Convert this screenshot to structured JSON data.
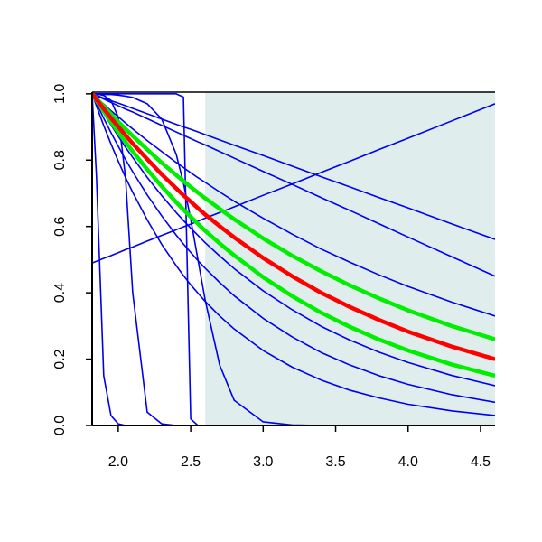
{
  "chart_data": {
    "type": "line",
    "xlim": [
      1.82,
      4.6
    ],
    "ylim": [
      0,
      1.005
    ],
    "xticks": [
      {
        "value": 2,
        "label": "2.0"
      },
      {
        "value": 2.5,
        "label": "2.5"
      },
      {
        "value": 3,
        "label": "3.0"
      },
      {
        "value": 3.5,
        "label": "3.5"
      },
      {
        "value": 4,
        "label": "4.0"
      },
      {
        "value": 4.5,
        "label": "4.5"
      }
    ],
    "yticks": [
      {
        "value": 0,
        "label": "0.0"
      },
      {
        "value": 0.2,
        "label": "0.2"
      },
      {
        "value": 0.4,
        "label": "0.4"
      },
      {
        "value": 0.6,
        "label": "0.6"
      },
      {
        "value": 0.8,
        "label": "0.8"
      },
      {
        "value": 1,
        "label": "1.0"
      }
    ],
    "shaded_region": {
      "x": [
        2.6,
        4.6
      ],
      "color": "#e0eded"
    },
    "x": [
      1.82,
      1.85,
      1.9,
      1.95,
      2.0,
      2.05,
      2.1,
      2.2,
      2.3,
      2.4,
      2.45,
      2.5,
      2.55,
      2.6,
      2.7,
      2.8,
      3.0,
      3.2,
      3.4,
      3.6,
      3.8,
      4.0,
      4.3,
      4.6
    ],
    "series": [
      {
        "color": "#0000ee",
        "values": [
          1,
          0.995,
          0.987,
          0.979,
          0.972,
          0.964,
          0.956,
          0.94,
          0.924,
          0.908,
          0.9,
          0.893,
          0.885,
          0.877,
          0.861,
          0.845,
          0.814,
          0.782,
          0.75,
          0.719,
          0.687,
          0.656,
          0.608,
          0.561
        ]
      },
      {
        "color": "#0000ee",
        "values": [
          1,
          0.994,
          0.984,
          0.974,
          0.964,
          0.954,
          0.945,
          0.925,
          0.905,
          0.885,
          0.875,
          0.865,
          0.855,
          0.846,
          0.826,
          0.806,
          0.766,
          0.727,
          0.687,
          0.648,
          0.608,
          0.568,
          0.509,
          0.45
        ]
      },
      {
        "color": "#0000ee",
        "values": [
          1,
          0.988,
          0.969,
          0.949,
          0.931,
          0.912,
          0.894,
          0.859,
          0.826,
          0.793,
          0.778,
          0.762,
          0.747,
          0.733,
          0.704,
          0.676,
          0.625,
          0.577,
          0.532,
          0.492,
          0.454,
          0.419,
          0.372,
          0.33
        ]
      },
      {
        "color": "#0000ee",
        "values": [
          1,
          0.977,
          0.941,
          0.906,
          0.872,
          0.839,
          0.808,
          0.748,
          0.693,
          0.642,
          0.618,
          0.595,
          0.573,
          0.551,
          0.511,
          0.473,
          0.406,
          0.349,
          0.299,
          0.257,
          0.221,
          0.19,
          0.151,
          0.12
        ]
      },
      {
        "color": "#0000ee",
        "values": [
          1,
          0.972,
          0.926,
          0.883,
          0.842,
          0.802,
          0.765,
          0.695,
          0.632,
          0.574,
          0.547,
          0.522,
          0.497,
          0.474,
          0.431,
          0.391,
          0.323,
          0.267,
          0.22,
          0.182,
          0.15,
          0.124,
          0.093,
          0.07
        ]
      },
      {
        "color": "#0000ee",
        "values": [
          1,
          0.963,
          0.904,
          0.849,
          0.797,
          0.748,
          0.703,
          0.62,
          0.546,
          0.482,
          0.452,
          0.424,
          0.399,
          0.374,
          0.33,
          0.291,
          0.226,
          0.176,
          0.137,
          0.106,
          0.083,
          0.064,
          0.044,
          0.03
        ]
      },
      {
        "color": "#0000ee",
        "values": [
          0.49,
          0.495,
          0.504,
          0.512,
          0.521,
          0.53,
          0.538,
          0.556,
          0.573,
          0.59,
          0.599,
          0.607,
          0.616,
          0.625,
          0.642,
          0.659,
          0.694,
          0.728,
          0.763,
          0.797,
          0.832,
          0.866,
          0.918,
          0.97
        ]
      },
      {
        "color": "#0000ee",
        "values": [
          1,
          0.75,
          0.15,
          0.03,
          0.005,
          0,
          0,
          0,
          0,
          0,
          0,
          0,
          0,
          0,
          0,
          0,
          0,
          0,
          0,
          0,
          0,
          0,
          0,
          0
        ]
      },
      {
        "color": "#0000ee",
        "values": [
          1,
          1,
          0.995,
          0.98,
          0.93,
          0.75,
          0.4,
          0.04,
          0.005,
          0,
          0,
          0,
          0,
          0,
          0,
          0,
          0,
          0,
          0,
          0,
          0,
          0,
          0,
          0
        ]
      },
      {
        "color": "#0000ee",
        "values": [
          1,
          1,
          1,
          1,
          1,
          1,
          1,
          1,
          1,
          1,
          0.99,
          0.02,
          0,
          0,
          0,
          0,
          0,
          0,
          0,
          0,
          0,
          0,
          0,
          0
        ]
      },
      {
        "color": "#0000ee",
        "values": [
          1,
          1,
          0.998,
          0.998,
          0.996,
          0.993,
          0.989,
          0.97,
          0.924,
          0.818,
          0.731,
          0.622,
          0.5,
          0.378,
          0.182,
          0.076,
          0.011,
          0.0015,
          0,
          0,
          0,
          0,
          0,
          0
        ]
      },
      {
        "color": "#00ee00",
        "values": [
          1,
          0.986,
          0.962,
          0.939,
          0.916,
          0.894,
          0.873,
          0.832,
          0.792,
          0.755,
          0.737,
          0.719,
          0.702,
          0.685,
          0.653,
          0.622,
          0.564,
          0.512,
          0.465,
          0.422,
          0.383,
          0.347,
          0.3,
          0.26
        ]
      },
      {
        "color": "#00ee00",
        "values": [
          1,
          0.98,
          0.947,
          0.915,
          0.884,
          0.855,
          0.826,
          0.772,
          0.721,
          0.673,
          0.651,
          0.629,
          0.608,
          0.587,
          0.549,
          0.513,
          0.447,
          0.39,
          0.34,
          0.297,
          0.259,
          0.226,
          0.184,
          0.15
        ]
      },
      {
        "color": "#ff0000",
        "values": [
          1,
          0.983,
          0.955,
          0.927,
          0.901,
          0.875,
          0.85,
          0.803,
          0.757,
          0.715,
          0.694,
          0.675,
          0.655,
          0.636,
          0.601,
          0.567,
          0.505,
          0.45,
          0.4,
          0.357,
          0.318,
          0.283,
          0.238,
          0.2
        ]
      }
    ]
  }
}
